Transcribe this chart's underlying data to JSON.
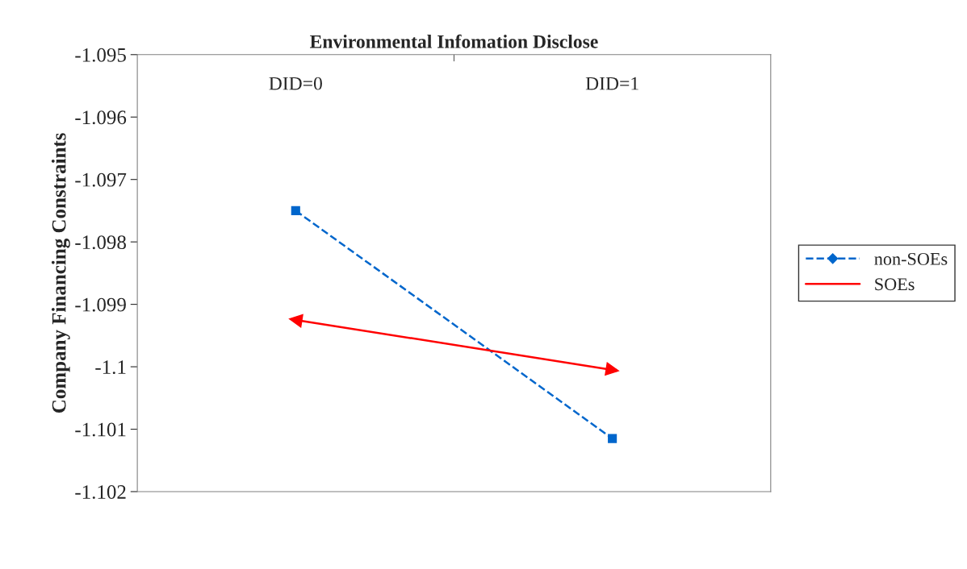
{
  "chart_data": {
    "type": "line",
    "title": "Environmental Infomation Disclose",
    "ylabel": "Company Financing Constraints",
    "categories": [
      "DID=0",
      "DID=1"
    ],
    "series": [
      {
        "name": "non-SOEs",
        "color": "#0066cc",
        "values": [
          -1.0975,
          -1.10115
        ],
        "marker": "square",
        "line_style": "dashed"
      },
      {
        "name": "SOEs",
        "color": "#ff0000",
        "values": [
          -1.09925,
          -1.10005
        ],
        "marker": "triangle",
        "line_style": "solid"
      }
    ],
    "ylim": [
      -1.102,
      -1.095
    ],
    "yticks": [
      -1.102,
      -1.101,
      -1.1,
      -1.099,
      -1.098,
      -1.097,
      -1.096,
      -1.095
    ],
    "grid": false,
    "legend": "right"
  }
}
